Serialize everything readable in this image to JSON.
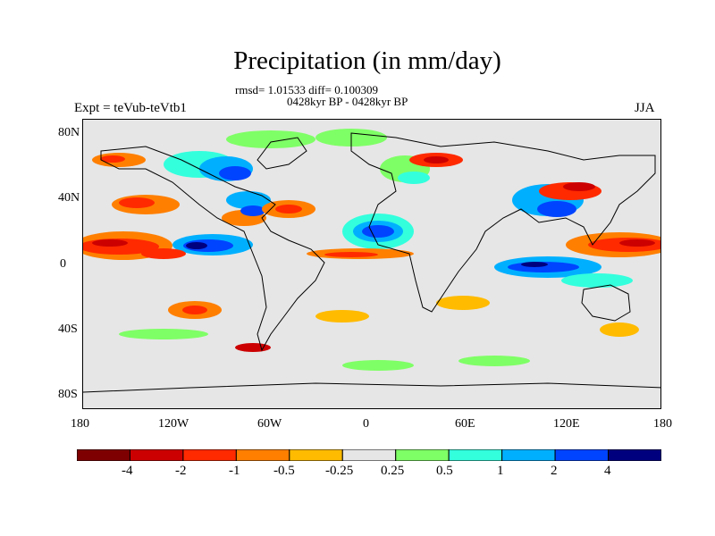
{
  "title": "Precipitation (in mm/day)",
  "stats_line": "rmsd= 1.01533 diff= 0.100309",
  "period_line": "0428kyr BP - 0428kyr BP",
  "left_label": "Expt = teVub-teVtb1",
  "right_label": "JJA",
  "y_axis_labels": [
    "80N",
    "40N",
    "0",
    "40S",
    "80S"
  ],
  "x_axis_labels": [
    "180",
    "120W",
    "60W",
    "0",
    "60E",
    "120E",
    "180"
  ],
  "colorbar": {
    "colors": [
      "#7f0000",
      "#cc0000",
      "#ff2a00",
      "#ff7f00",
      "#ffbb00",
      "#e6e6e6",
      "#7fff66",
      "#33ffdd",
      "#00b0ff",
      "#0044ff",
      "#00007f"
    ],
    "labels": [
      "-4",
      "-2",
      "-1",
      "-0.5",
      "-0.25",
      "0.25",
      "0.5",
      "1",
      "2",
      "4"
    ]
  },
  "map": {
    "background_color": "#e6e6e6",
    "coastline_color": "#000000"
  }
}
